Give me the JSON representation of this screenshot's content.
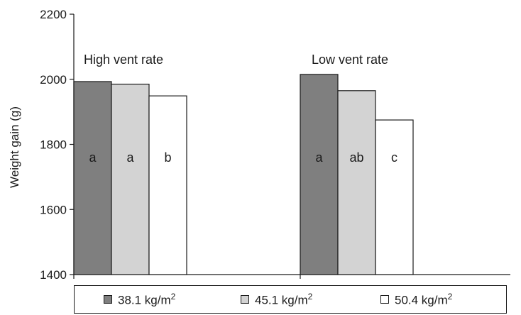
{
  "chart_data": {
    "type": "bar",
    "ylabel": "Weight gain (g)",
    "ylim": [
      1400,
      2200
    ],
    "yticks": [
      "1400",
      "1600",
      "1800",
      "2000",
      "2200"
    ],
    "groups": [
      {
        "name": "High vent rate",
        "bars": [
          {
            "series": "38.1 kg/m2",
            "value": 1993,
            "label": "a"
          },
          {
            "series": "45.1 kg/m2",
            "value": 1985,
            "label": "a"
          },
          {
            "series": "50.4 kg/m2",
            "value": 1949,
            "label": "b"
          }
        ]
      },
      {
        "name": "Low vent rate",
        "bars": [
          {
            "series": "38.1 kg/m2",
            "value": 2015,
            "label": "a"
          },
          {
            "series": "45.1 kg/m2",
            "value": 1965,
            "label": "ab"
          },
          {
            "series": "50.4 kg/m2",
            "value": 1875,
            "label": "c"
          }
        ]
      }
    ],
    "series": [
      {
        "name": "38.1 kg/m2",
        "base": "38.1 kg/m",
        "sup": "2",
        "color": "#7f7f7f"
      },
      {
        "name": "45.1 kg/m2",
        "base": "45.1 kg/m",
        "sup": "2",
        "color": "#d3d3d3"
      },
      {
        "name": "50.4 kg/m2",
        "base": "50.4 kg/m",
        "sup": "2",
        "color": "#ffffff"
      }
    ],
    "legend_position": "bottom",
    "grid": false
  }
}
